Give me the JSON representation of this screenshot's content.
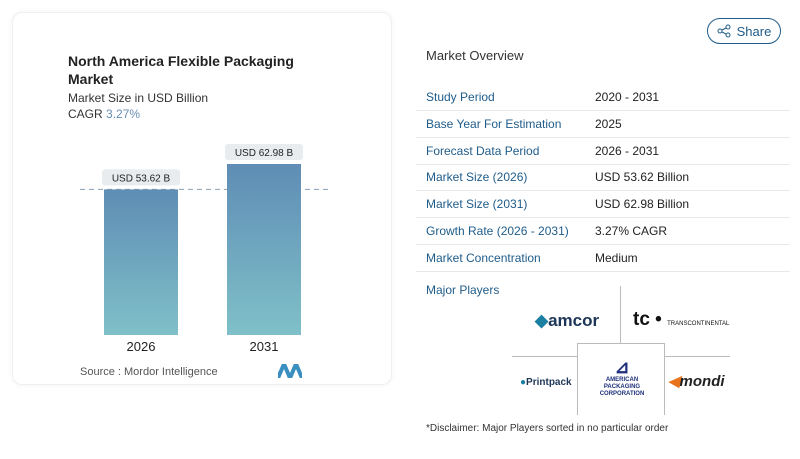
{
  "chart_data": {
    "type": "bar",
    "title": "North America Flexible Packaging Market",
    "subtitle": "Market Size in USD Billion",
    "cagr_label": "CAGR",
    "cagr_value": "3.27%",
    "categories": [
      "2026",
      "2031"
    ],
    "values": [
      53.62,
      62.98
    ],
    "data_labels": [
      "USD 53.62 B",
      "USD 62.98 B"
    ],
    "ylim": [
      0,
      62.98
    ],
    "grid": false,
    "colors": {
      "top": "#5f8db5",
      "bottom": "#7fc0c8"
    },
    "source": "Source :  Mordor Intelligence"
  },
  "share_label": "Share",
  "overview": {
    "title": "Market Overview",
    "rows": [
      {
        "label": "Study Period",
        "value": "2020 - 2031"
      },
      {
        "label": "Base Year For Estimation",
        "value": "2025"
      },
      {
        "label": "Forecast Data Period",
        "value": "2026 - 2031"
      },
      {
        "label": "Market Size (2026)",
        "value": "USD 53.62 Billion"
      },
      {
        "label": "Market Size (2031)",
        "value": "USD 62.98 Billion"
      },
      {
        "label": "Growth Rate (2026 - 2031)",
        "value": "3.27% CAGR"
      },
      {
        "label": "Market Concentration",
        "value": "Medium"
      }
    ]
  },
  "major_players": {
    "title": "Major Players",
    "logos": [
      "amcor",
      "tc",
      "TRANSCONTINENTAL",
      "Printpack",
      "AMERICAN PACKAGING CORPORATION",
      "mondi"
    ]
  },
  "disclaimer": "*Disclaimer: Major Players sorted in no particular order"
}
